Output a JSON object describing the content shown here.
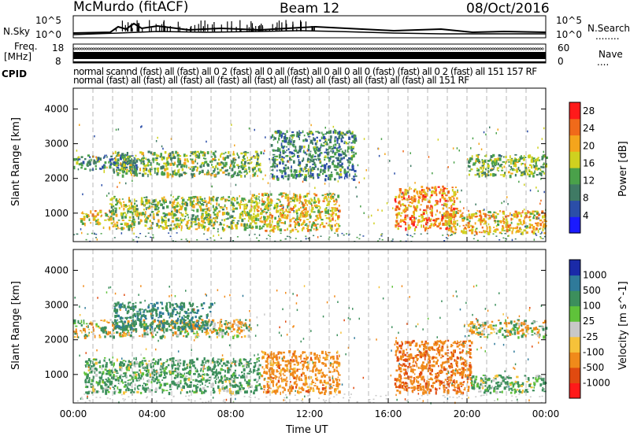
{
  "header": {
    "station": "McMurdo (fitACF)",
    "beam": "Beam 12",
    "date": "08/Oct/2016"
  },
  "noise_panel": {
    "left_label": "N.Sky",
    "right_label": "N.Search",
    "right_label_dots": "........",
    "left_ticks": [
      "10^5",
      "10^0"
    ],
    "right_ticks": [
      "10^5",
      "10^0"
    ]
  },
  "freq_panel": {
    "left_label_line1": "Freq.",
    "left_label_line2": "[MHz]",
    "right_label": "Nave",
    "right_label_dots": "....",
    "left_ticks": [
      "18",
      "8"
    ],
    "right_ticks": [
      "60",
      "0"
    ]
  },
  "cpid_panel": {
    "label": "CPID",
    "row1": "normal scannd (fast) all (fast) all 0 2 (fast) all 0 all (fast) all 0 all 0 all 0 (fast) (fast) all 0 2 (fast) all 151 157 RF",
    "row2": "normal (fast) all (fast) all (fast) all (fast) all (fast) all (fast) all (fast) all (fast) all (fast) all 151 RF"
  },
  "chart_data": [
    {
      "type": "heatmap",
      "title": "",
      "xlabel": "Time UT",
      "ylabel": "Slant Range [km]",
      "x_ticks": [
        "00:00",
        "04:00",
        "08:00",
        "12:00",
        "16:00",
        "20:00",
        "00:00"
      ],
      "xlim_hours": [
        0,
        24
      ],
      "y_ticks": [
        1000,
        2000,
        3000,
        4000
      ],
      "ylim": [
        180,
        4600
      ],
      "colorbar": {
        "label": "Power [dB]",
        "ticks": [
          4,
          8,
          12,
          16,
          20,
          24,
          28
        ],
        "range": [
          0,
          30
        ],
        "colors": [
          "#1a1aff",
          "#2b4ea8",
          "#3f7a64",
          "#4aa14a",
          "#cfd11f",
          "#f4a51c",
          "#f06a1a",
          "#ff1a1a"
        ]
      },
      "regions": [
        {
          "t0": 0.0,
          "t1": 3.2,
          "r0": 2250,
          "r1": 2700,
          "value": 10
        },
        {
          "t0": 0.3,
          "t1": 2.0,
          "r0": 700,
          "r1": 1100,
          "value": 18
        },
        {
          "t0": 1.8,
          "t1": 9.0,
          "r0": 550,
          "r1": 1500,
          "value": 16
        },
        {
          "t0": 2.0,
          "t1": 9.5,
          "r0": 2100,
          "r1": 2800,
          "value": 14
        },
        {
          "t0": 9.0,
          "t1": 13.5,
          "r0": 500,
          "r1": 1600,
          "value": 18
        },
        {
          "t0": 10.0,
          "t1": 14.3,
          "r0": 2000,
          "r1": 3400,
          "value": 10
        },
        {
          "t0": 16.3,
          "t1": 19.5,
          "r0": 550,
          "r1": 1800,
          "value": 22
        },
        {
          "t0": 19.0,
          "t1": 24.0,
          "r0": 450,
          "r1": 1100,
          "value": 20
        },
        {
          "t0": 20.0,
          "t1": 24.0,
          "r0": 2100,
          "r1": 2700,
          "value": 14
        }
      ]
    },
    {
      "type": "heatmap",
      "title": "",
      "xlabel": "Time UT",
      "ylabel": "Slant Range [km]",
      "x_ticks": [
        "00:00",
        "04:00",
        "08:00",
        "12:00",
        "16:00",
        "20:00",
        "00:00"
      ],
      "xlim_hours": [
        0,
        24
      ],
      "y_ticks": [
        1000,
        2000,
        3000,
        4000
      ],
      "ylim": [
        180,
        4600
      ],
      "colorbar": {
        "label": "Velocity [m s^-1]",
        "ticks": [
          1000,
          500,
          100,
          25,
          -25,
          -100,
          -500,
          -1000
        ],
        "colors": [
          "#1a2aa8",
          "#2f7a9a",
          "#3c8f5c",
          "#5fc23a",
          "#c8c8c8",
          "#f6c23a",
          "#f08a1a",
          "#e04a10",
          "#ff1a1a"
        ]
      },
      "regions": [
        {
          "t0": 0.5,
          "t1": 9.5,
          "r0": 500,
          "r1": 1500,
          "value": 200
        },
        {
          "t0": 0.0,
          "t1": 9.0,
          "r0": 2100,
          "r1": 2600,
          "value": 0
        },
        {
          "t0": 2.0,
          "t1": 7.0,
          "r0": 2300,
          "r1": 3100,
          "value": 400
        },
        {
          "t0": 9.5,
          "t1": 13.5,
          "r0": 500,
          "r1": 1700,
          "value": -300
        },
        {
          "t0": 16.3,
          "t1": 20.2,
          "r0": 500,
          "r1": 2000,
          "value": -400
        },
        {
          "t0": 20.2,
          "t1": 24.0,
          "r0": 500,
          "r1": 1000,
          "value": 150
        },
        {
          "t0": 20.0,
          "t1": 24.0,
          "r0": 2100,
          "r1": 2600,
          "value": 0
        }
      ]
    }
  ]
}
